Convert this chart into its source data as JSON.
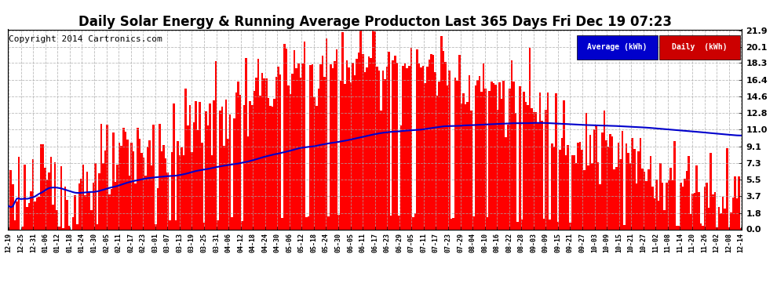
{
  "title": "Daily Solar Energy & Running Average Producton Last 365 Days Fri Dec 19 07:23",
  "copyright": "Copyright 2014 Cartronics.com",
  "yticks": [
    0.0,
    1.8,
    3.7,
    5.5,
    7.3,
    9.1,
    11.0,
    12.8,
    14.6,
    16.4,
    18.3,
    20.1,
    21.9
  ],
  "ymax": 21.9,
  "ymin": 0.0,
  "bar_color": "#ff0000",
  "avg_color": "#0000cc",
  "legend_avg_bg": "#0000cc",
  "legend_daily_bg": "#cc0000",
  "legend_avg_text": "Average (kWh)",
  "legend_daily_text": "Daily  (kWh)",
  "background_color": "#ffffff",
  "plot_bg_color": "#ffffff",
  "title_fontsize": 12,
  "copyright_fontsize": 8,
  "n_bars": 365,
  "xtick_labels": [
    "12-19",
    "12-25",
    "12-31",
    "01-06",
    "01-12",
    "01-18",
    "01-24",
    "01-30",
    "02-05",
    "02-11",
    "02-17",
    "02-23",
    "03-01",
    "03-07",
    "03-13",
    "03-19",
    "03-25",
    "03-31",
    "04-06",
    "04-12",
    "04-18",
    "04-24",
    "04-30",
    "05-06",
    "05-12",
    "05-18",
    "05-24",
    "05-30",
    "06-05",
    "06-11",
    "06-17",
    "06-23",
    "06-29",
    "07-05",
    "07-11",
    "07-17",
    "07-23",
    "07-29",
    "08-04",
    "08-10",
    "08-16",
    "08-22",
    "08-28",
    "09-03",
    "09-09",
    "09-15",
    "09-21",
    "09-27",
    "10-03",
    "10-09",
    "10-15",
    "10-21",
    "10-27",
    "11-02",
    "11-08",
    "11-14",
    "11-20",
    "11-26",
    "12-02",
    "12-08",
    "12-14"
  ]
}
